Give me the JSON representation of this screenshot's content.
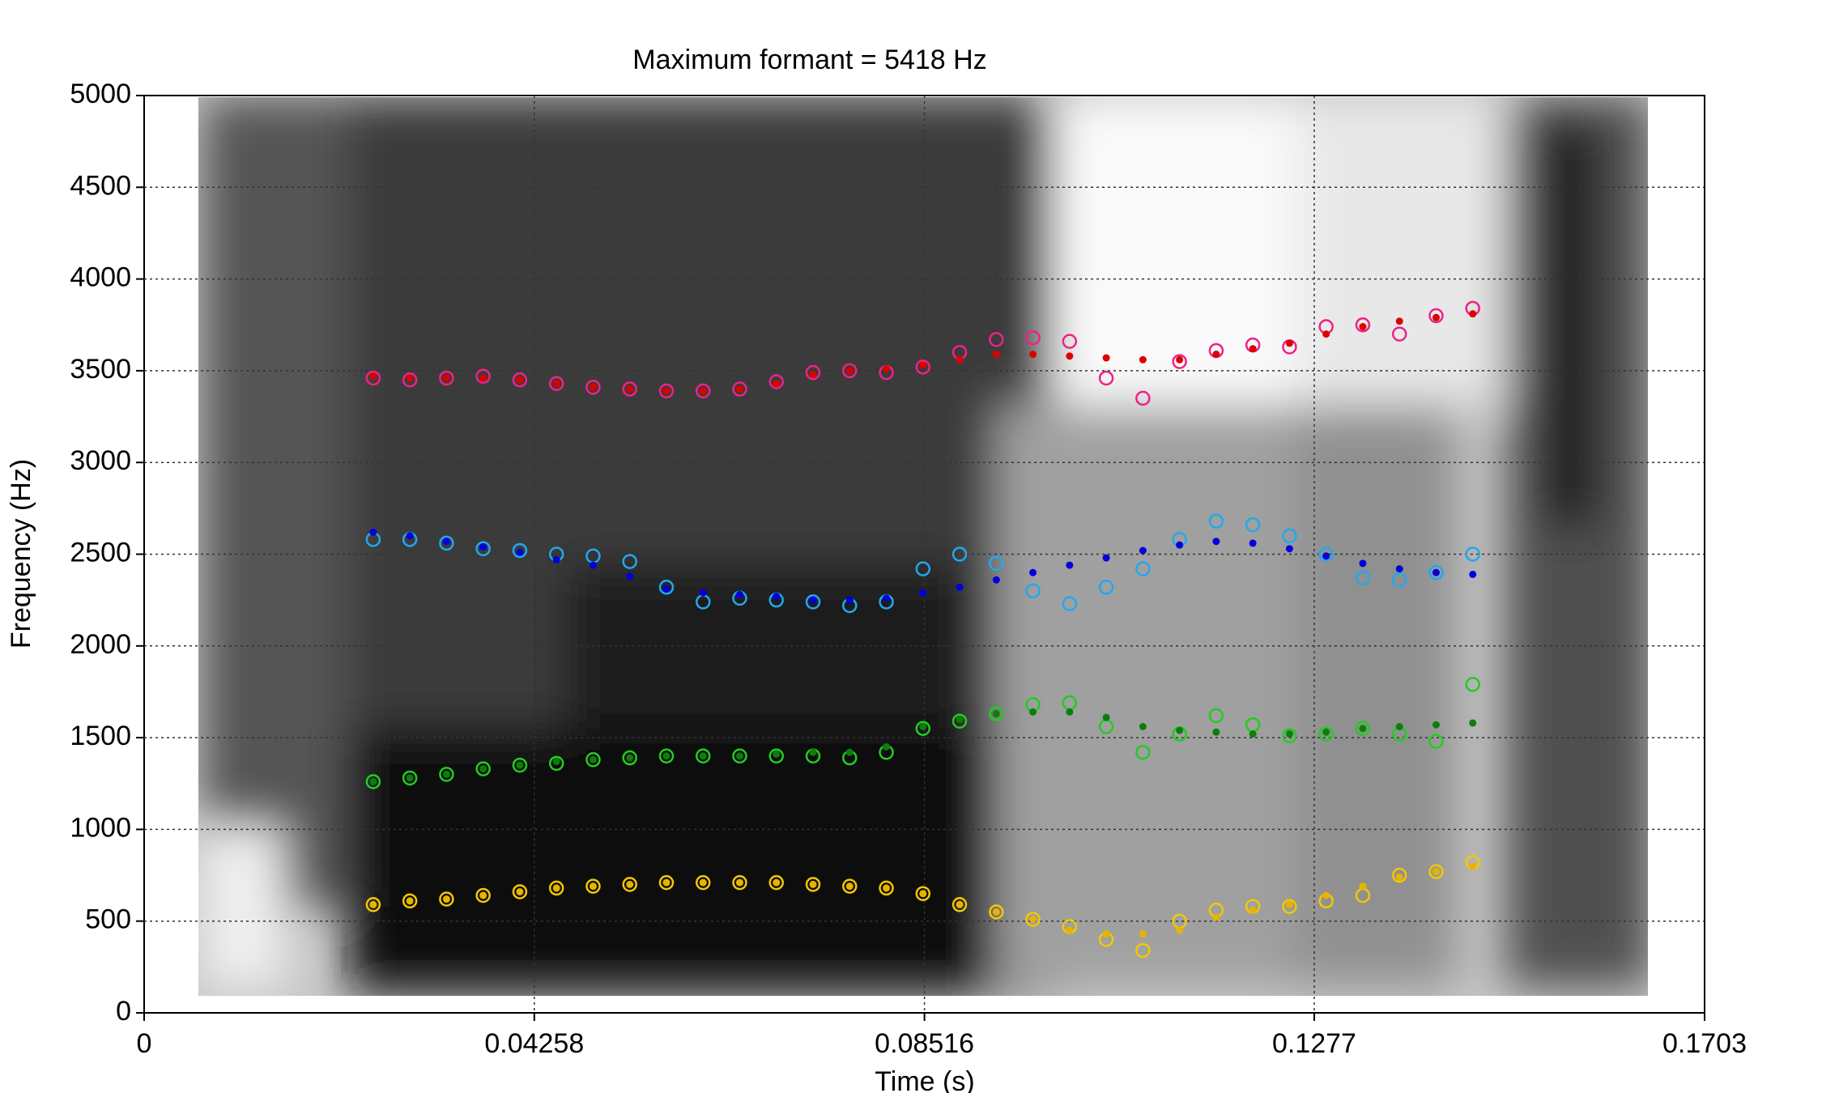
{
  "chart_data": {
    "type": "scatter",
    "title": "Maximum formant = 5418 Hz",
    "x_label": "Time (s)",
    "y_label": "Frequency (Hz)",
    "xlim": [
      0,
      0.1703
    ],
    "ylim": [
      0,
      5000
    ],
    "xticks": [
      0,
      0.04258,
      0.08516,
      0.1277,
      0.1703
    ],
    "yticks": [
      0,
      500,
      1000,
      1500,
      2000,
      2500,
      3000,
      3500,
      4000,
      4500,
      5000
    ],
    "grid": true,
    "x": [
      0.025,
      0.029,
      0.033,
      0.037,
      0.041,
      0.045,
      0.049,
      0.053,
      0.057,
      0.061,
      0.065,
      0.069,
      0.073,
      0.077,
      0.081,
      0.085,
      0.089,
      0.093,
      0.097,
      0.101,
      0.105,
      0.109,
      0.113,
      0.117,
      0.121,
      0.125,
      0.129,
      0.133,
      0.137,
      0.141,
      0.145
    ],
    "series": [
      {
        "marker": "circle-open",
        "color": "#f2c800",
        "values": [
          590,
          610,
          620,
          640,
          660,
          680,
          690,
          700,
          710,
          710,
          710,
          710,
          700,
          690,
          680,
          650,
          590,
          550,
          510,
          470,
          400,
          340,
          500,
          560,
          580,
          580,
          610,
          640,
          750,
          770,
          820
        ]
      },
      {
        "marker": "dot",
        "color": "#e6b400",
        "values": [
          590,
          610,
          620,
          640,
          660,
          680,
          690,
          700,
          710,
          710,
          710,
          710,
          700,
          690,
          680,
          650,
          590,
          550,
          510,
          450,
          430,
          430,
          450,
          520,
          560,
          590,
          640,
          690,
          740,
          770,
          800
        ]
      },
      {
        "marker": "circle-open",
        "color": "#22cc22",
        "values": [
          1260,
          1280,
          1300,
          1330,
          1350,
          1360,
          1380,
          1390,
          1400,
          1400,
          1400,
          1400,
          1400,
          1390,
          1420,
          1550,
          1590,
          1630,
          1680,
          1690,
          1560,
          1420,
          1520,
          1620,
          1570,
          1510,
          1520,
          1550,
          1520,
          1480,
          1790
        ]
      },
      {
        "marker": "dot",
        "color": "#0d7d0d",
        "values": [
          1260,
          1280,
          1300,
          1330,
          1350,
          1370,
          1380,
          1390,
          1400,
          1400,
          1400,
          1410,
          1420,
          1420,
          1450,
          1560,
          1600,
          1630,
          1640,
          1640,
          1610,
          1560,
          1540,
          1530,
          1520,
          1520,
          1530,
          1550,
          1560,
          1570,
          1580
        ]
      },
      {
        "marker": "circle-open",
        "color": "#22a8ee",
        "values": [
          2580,
          2580,
          2560,
          2530,
          2520,
          2500,
          2490,
          2460,
          2320,
          2240,
          2260,
          2250,
          2240,
          2220,
          2240,
          2420,
          2500,
          2450,
          2300,
          2230,
          2320,
          2420,
          2580,
          2680,
          2660,
          2600,
          2500,
          2370,
          2360,
          2400,
          2500
        ]
      },
      {
        "marker": "dot",
        "color": "#0000dd",
        "values": [
          2620,
          2600,
          2570,
          2540,
          2510,
          2470,
          2440,
          2380,
          2310,
          2290,
          2280,
          2270,
          2250,
          2250,
          2260,
          2290,
          2320,
          2360,
          2400,
          2440,
          2480,
          2520,
          2550,
          2570,
          2560,
          2530,
          2490,
          2450,
          2420,
          2400,
          2390
        ]
      },
      {
        "marker": "circle-open",
        "color": "#ee2288",
        "values": [
          3460,
          3450,
          3460,
          3470,
          3450,
          3430,
          3410,
          3400,
          3390,
          3390,
          3400,
          3440,
          3490,
          3500,
          3490,
          3520,
          3600,
          3670,
          3680,
          3660,
          3460,
          3350,
          3550,
          3610,
          3640,
          3630,
          3740,
          3750,
          3700,
          3800,
          3840
        ]
      },
      {
        "marker": "dot",
        "color": "#dd0000",
        "values": [
          3470,
          3460,
          3460,
          3460,
          3450,
          3430,
          3410,
          3400,
          3390,
          3390,
          3400,
          3430,
          3480,
          3500,
          3510,
          3530,
          3560,
          3590,
          3590,
          3580,
          3570,
          3560,
          3560,
          3590,
          3620,
          3650,
          3700,
          3740,
          3770,
          3790,
          3810
        ]
      }
    ]
  }
}
